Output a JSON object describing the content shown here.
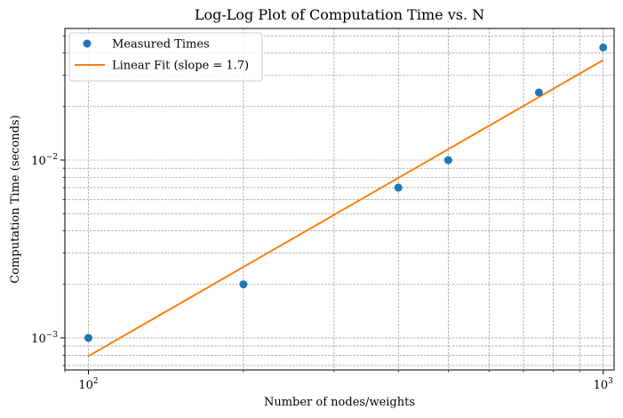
{
  "chart_data": {
    "type": "scatter",
    "title": "Log-Log Plot of Computation Time vs. N",
    "xlabel": "Number of nodes/weights",
    "ylabel": "Computation Time (seconds)",
    "xscale": "log",
    "yscale": "log",
    "xlim": [
      90,
      1050
    ],
    "ylim": [
      0.00066,
      0.055
    ],
    "grid": true,
    "legend_position": "top-left",
    "x_ticks": [
      {
        "value": 100,
        "base": "10",
        "exp": "2"
      },
      {
        "value": 1000,
        "base": "10",
        "exp": "3"
      }
    ],
    "y_ticks": [
      {
        "value": 0.001,
        "base": "10",
        "exp": "−3"
      },
      {
        "value": 0.01,
        "base": "10",
        "exp": "−2"
      }
    ],
    "series": [
      {
        "name": "Measured Times",
        "kind": "scatter",
        "color": "#1f77b4",
        "points": [
          {
            "x": 100,
            "y": 0.001
          },
          {
            "x": 200,
            "y": 0.002
          },
          {
            "x": 400,
            "y": 0.007
          },
          {
            "x": 500,
            "y": 0.01
          },
          {
            "x": 750,
            "y": 0.024
          },
          {
            "x": 1000,
            "y": 0.043
          }
        ]
      },
      {
        "name": "Linear Fit (slope = 1.7)",
        "kind": "line",
        "color": "#ff7f0e",
        "points": [
          {
            "x": 100,
            "y": 0.00079
          },
          {
            "x": 1000,
            "y": 0.0365
          }
        ]
      }
    ]
  }
}
